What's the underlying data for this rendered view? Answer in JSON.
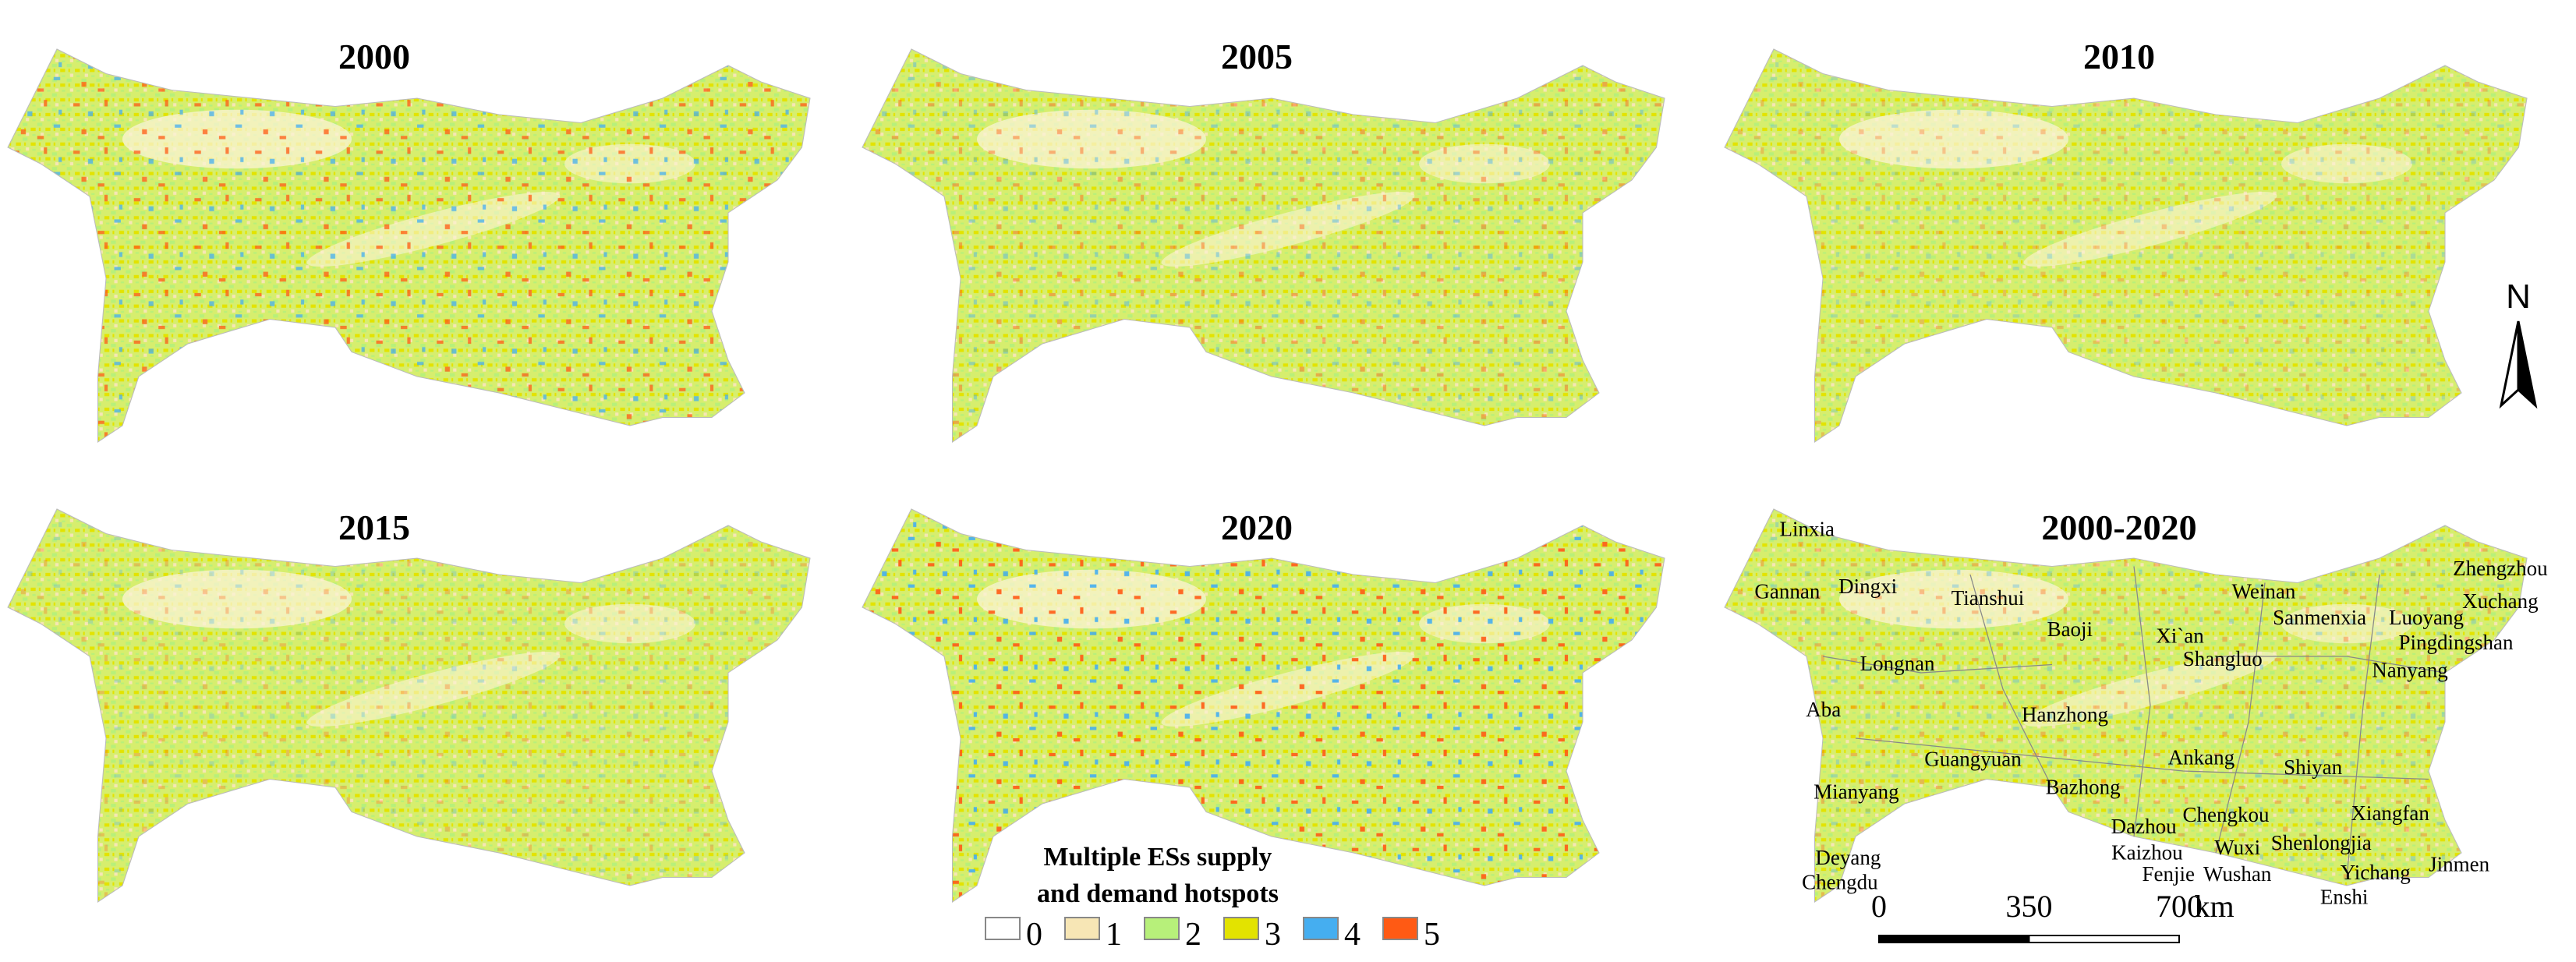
{
  "panels": [
    {
      "title": "2000"
    },
    {
      "title": "2005"
    },
    {
      "title": "2010"
    },
    {
      "title": "2015"
    },
    {
      "title": "2020"
    },
    {
      "title": "2000-2020"
    }
  ],
  "legend": {
    "title": [
      "Multiple ESs supply",
      "and demand hotspots"
    ],
    "items": [
      {
        "label": "0",
        "color": "#ffffff"
      },
      {
        "label": "1",
        "color": "#f7e6b5"
      },
      {
        "label": "2",
        "color": "#b7f07a"
      },
      {
        "label": "3",
        "color": "#e3e300"
      },
      {
        "label": "4",
        "color": "#45aef0"
      },
      {
        "label": "5",
        "color": "#ff5a14"
      }
    ]
  },
  "cities": [
    "Linxia",
    "Gannan",
    "Dingxi",
    "Tianshui",
    "Weinan",
    "Zhengzhou",
    "Xuchang",
    "Sanmenxia",
    "Luoyang",
    "Pingdingshan",
    "Baoji",
    "Xi`an",
    "Longnan",
    "Shangluo",
    "Nanyang",
    "Aba",
    "Hanzhong",
    "Ankang",
    "Guangyuan",
    "Shiyan",
    "Bazhong",
    "Mianyang",
    "Xiangfan",
    "Dazhou",
    "Chengkou",
    "Kaizhou",
    "Wuxi",
    "Shenlongjia",
    "Deyang",
    "Fenjie",
    "Wushan",
    "Yichang",
    "Jinmen",
    "Chengdu",
    "Enshi"
  ],
  "scale_bar": {
    "ticks": [
      0,
      350,
      700
    ],
    "unit": "km"
  },
  "north": "N"
}
